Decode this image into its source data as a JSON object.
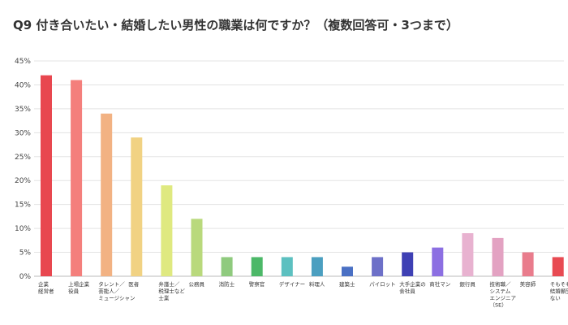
{
  "chart_data": {
    "type": "bar",
    "title": "Q9 付き合いたい・結婚したい男性の職業は何ですか？（複数回答可・3つまで）",
    "categories": [
      [
        "企業",
        "経営者"
      ],
      [
        "上場企業",
        "役員"
      ],
      [
        "タレント／",
        "芸能人／",
        "ミュージシャン"
      ],
      [
        "医者"
      ],
      [
        "弁護士／",
        "税理士など",
        "士業"
      ],
      [
        "公務員"
      ],
      [
        "消防士"
      ],
      [
        "警察官"
      ],
      [
        "デザイナー"
      ],
      [
        "料理人"
      ],
      [
        "建築士"
      ],
      [
        "パイロット"
      ],
      [
        "大手企業の",
        "会社員"
      ],
      [
        "商社マン"
      ],
      [
        "銀行員"
      ],
      [
        "技術職／",
        "システム",
        "エンジニア",
        "（SE）"
      ],
      [
        "美容師"
      ],
      [
        "そもそも",
        "結婚願望が",
        "ない"
      ]
    ],
    "values": [
      42,
      41,
      34,
      29,
      19,
      12,
      4,
      4,
      4,
      4,
      2,
      4,
      5,
      6,
      9,
      8,
      5,
      4
    ],
    "unit": "%",
    "ylim": [
      0,
      45
    ],
    "yticks": [
      "0%",
      "5%",
      "10%",
      "15%",
      "20%",
      "25%",
      "30%",
      "35%",
      "40%",
      "45%"
    ],
    "grid": true,
    "colors": [
      "#e8474f",
      "#f47f7c",
      "#f2b283",
      "#f1d283",
      "#dfe980",
      "#b9d97c",
      "#8fca7e",
      "#4cb868",
      "#5cc0c0",
      "#4b9fc0",
      "#4a70c4",
      "#6d70c8",
      "#3e40b4",
      "#8c6fe2",
      "#e8b2d0",
      "#e3a2c2",
      "#e97c8c",
      "#e84a52"
    ]
  }
}
